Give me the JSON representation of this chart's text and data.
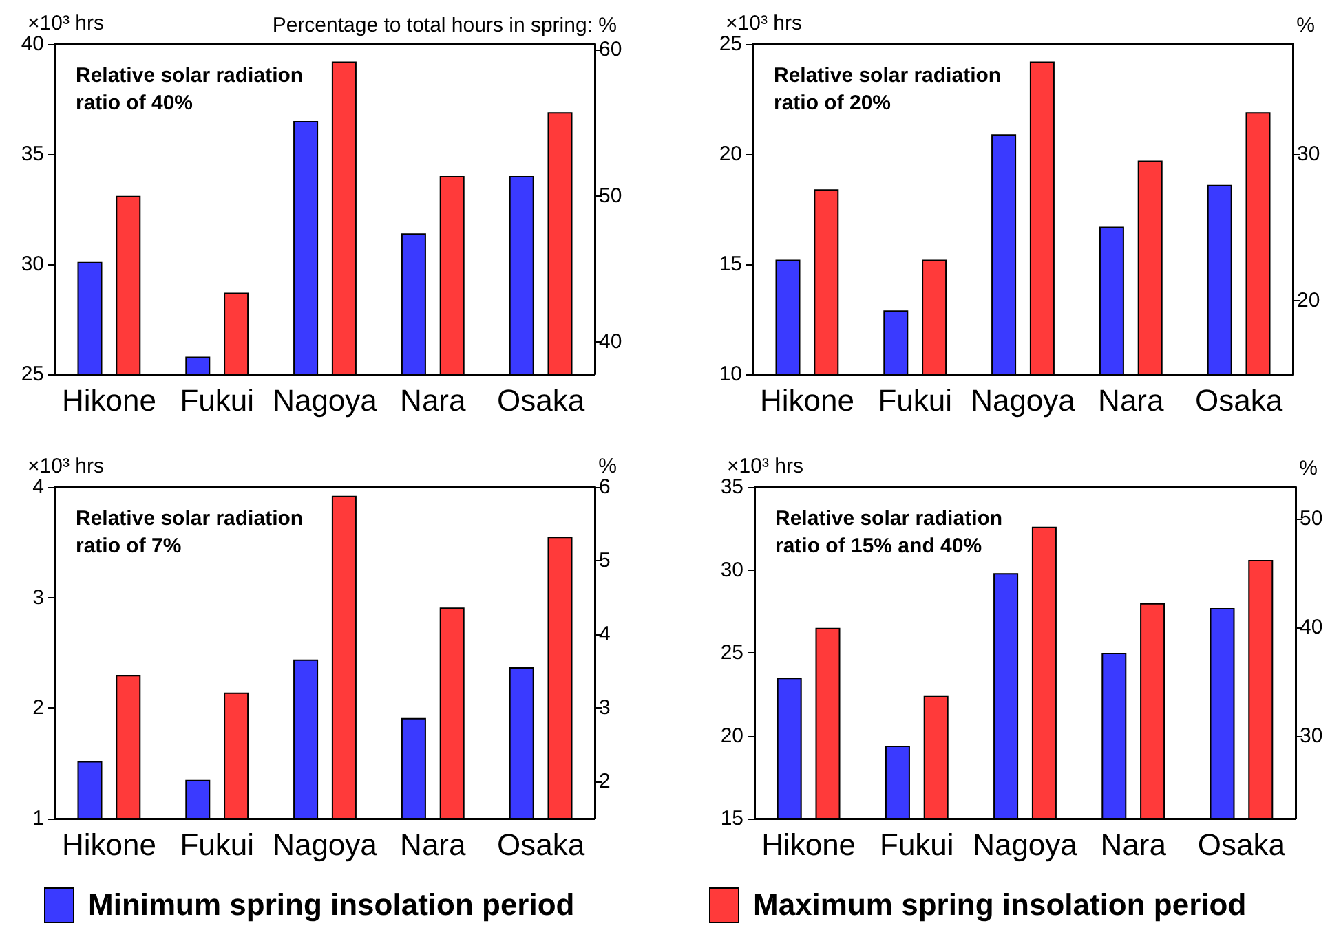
{
  "chart_data": [
    {
      "type": "bar",
      "title": "Relative solar radiation ratio of 40%",
      "ylabel": "×10³ hrs",
      "y2label": "Percentage to total hours in spring: %",
      "categories": [
        "Hikone",
        "Fukui",
        "Nagoya",
        "Nara",
        "Osaka"
      ],
      "series": [
        {
          "name": "Minimum spring insolation period",
          "color": "#3a3aff",
          "values": [
            30.1,
            25.8,
            36.5,
            31.4,
            34.0
          ]
        },
        {
          "name": "Maximum spring insolation period",
          "color": "#ff3a3a",
          "values": [
            33.1,
            28.7,
            39.2,
            34.0,
            36.9
          ]
        }
      ],
      "ylim": [
        25,
        40
      ],
      "yticks": [
        25,
        30,
        35,
        40
      ],
      "y2lim": [
        37.8,
        60.4
      ],
      "y2ticks": [
        40,
        50,
        60
      ],
      "grid": false,
      "legend": "bottom"
    },
    {
      "type": "bar",
      "title": "Relative solar radiation ratio of 20%",
      "ylabel": "×10³ hrs",
      "y2label": "%",
      "categories": [
        "Hikone",
        "Fukui",
        "Nagoya",
        "Nara",
        "Osaka"
      ],
      "series": [
        {
          "color": "#3a3aff",
          "values": [
            15.2,
            12.9,
            20.9,
            16.7,
            18.6
          ]
        },
        {
          "color": "#ff3a3a",
          "values": [
            18.4,
            15.2,
            24.2,
            19.7,
            21.9
          ]
        }
      ],
      "ylim": [
        10,
        25
      ],
      "yticks": [
        10,
        15,
        20,
        25
      ],
      "y2lim": [
        15,
        37.5
      ],
      "y2ticks": [
        20,
        30
      ],
      "grid": false
    },
    {
      "type": "bar",
      "title": "Relative solar radiation ratio of 7%",
      "ylabel": "×10³ hrs",
      "y2label": "%",
      "categories": [
        "Hikone",
        "Fukui",
        "Nagoya",
        "Nara",
        "Osaka"
      ],
      "series": [
        {
          "color": "#3a3aff",
          "values": [
            1.52,
            1.35,
            2.44,
            1.91,
            2.37
          ]
        },
        {
          "color": "#ff3a3a",
          "values": [
            2.3,
            2.14,
            3.92,
            2.91,
            3.55
          ]
        }
      ],
      "ylim": [
        1,
        4
      ],
      "yticks": [
        1,
        2,
        3,
        4
      ],
      "y2lim": [
        1.5,
        6
      ],
      "y2ticks": [
        2,
        3,
        4,
        5,
        6
      ],
      "grid": false
    },
    {
      "type": "bar",
      "title": "Relative solar radiation ratio of 15% and 40%",
      "ylabel": "×10³ hrs",
      "y2label": "%",
      "categories": [
        "Hikone",
        "Fukui",
        "Nagoya",
        "Nara",
        "Osaka"
      ],
      "series": [
        {
          "color": "#3a3aff",
          "values": [
            23.5,
            19.4,
            29.8,
            25.0,
            27.7
          ]
        },
        {
          "color": "#ff3a3a",
          "values": [
            26.5,
            22.4,
            32.6,
            28.0,
            30.6
          ]
        }
      ],
      "ylim": [
        15,
        35
      ],
      "yticks": [
        15,
        20,
        25,
        30,
        35
      ],
      "y2lim": [
        22.4,
        52.9
      ],
      "y2ticks": [
        30,
        40,
        50
      ],
      "grid": false
    }
  ]
}
